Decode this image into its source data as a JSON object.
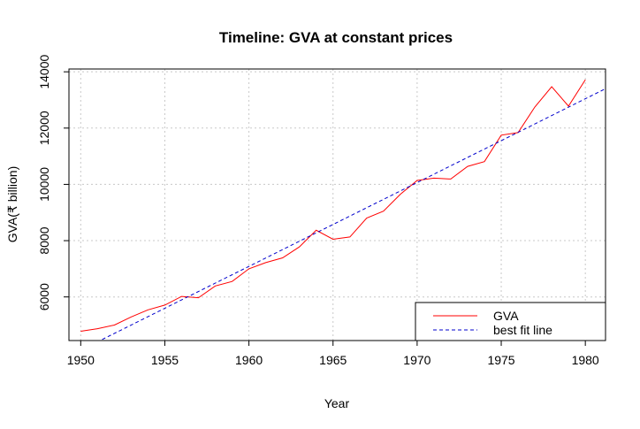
{
  "chart_data": {
    "type": "line",
    "title": "Timeline: GVA at constant prices",
    "xlabel": "Year",
    "ylabel": "GVA(₹ billion)",
    "xlim": [
      1949.3,
      1981.2
    ],
    "ylim": [
      4450,
      14100
    ],
    "xticks": [
      1950,
      1955,
      1960,
      1965,
      1970,
      1975,
      1980
    ],
    "yticks": [
      6000,
      8000,
      10000,
      12000,
      14000
    ],
    "grid": true,
    "legend_position": "bottom-right",
    "colors": {
      "gva": "#ff0000",
      "fit": "#0000cc"
    },
    "series": [
      {
        "name": "GVA",
        "style": "solid",
        "x": [
          1950,
          1951,
          1952,
          1953,
          1954,
          1955,
          1956,
          1957,
          1958,
          1959,
          1960,
          1961,
          1962,
          1963,
          1964,
          1965,
          1966,
          1967,
          1968,
          1969,
          1970,
          1971,
          1972,
          1973,
          1974,
          1975,
          1976,
          1977,
          1978,
          1979,
          1980
        ],
        "y": [
          4780,
          4870,
          5000,
          5290,
          5540,
          5710,
          6020,
          5970,
          6390,
          6550,
          7000,
          7220,
          7390,
          7780,
          8370,
          8050,
          8130,
          8800,
          9050,
          9650,
          10140,
          10220,
          10190,
          10640,
          10810,
          11750,
          11840,
          12750,
          13470,
          12780,
          13720
        ]
      },
      {
        "name": "best fit line",
        "style": "dashed",
        "x": [
          1949.3,
          1981.2
        ],
        "y": [
          3900,
          13400
        ]
      }
    ]
  }
}
